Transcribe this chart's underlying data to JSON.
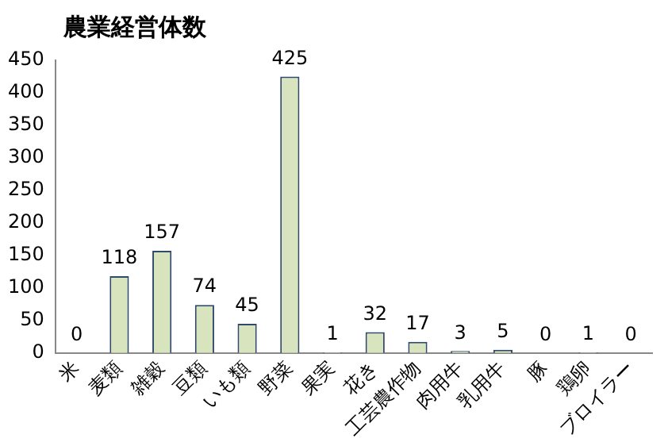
{
  "chart_data": {
    "type": "bar",
    "title": "農業経営体数",
    "categories": [
      "米",
      "麦類",
      "雑穀",
      "豆類",
      "いも類",
      "野菜",
      "果実",
      "花き",
      "工芸農作物",
      "肉用牛",
      "乳用牛",
      "豚",
      "鶏卵",
      "ブロイラー"
    ],
    "values": [
      0,
      118,
      157,
      74,
      45,
      425,
      1,
      32,
      17,
      3,
      5,
      0,
      1,
      0
    ],
    "color": "#d7e4bd",
    "ylim": [
      0,
      450
    ],
    "yticks": [
      0,
      50,
      100,
      150,
      200,
      250,
      300,
      350,
      400,
      450
    ],
    "grid": false,
    "legend": false,
    "data_labels": true
  }
}
